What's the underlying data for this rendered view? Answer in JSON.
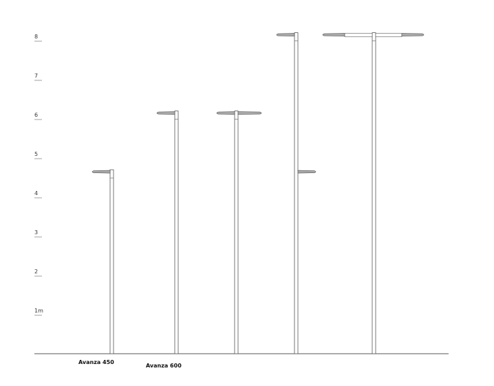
{
  "scale": {
    "unit_label": "m",
    "ticks": [
      "1",
      "2",
      "3",
      "4",
      "5",
      "6",
      "7",
      "8"
    ]
  },
  "products": [
    {
      "label": "Avanza 450",
      "height_m": 4.7,
      "arms": [
        "left"
      ]
    },
    {
      "label": "Avanza 600",
      "height_m": 6.2,
      "arms": [
        "left"
      ]
    },
    {
      "label": "",
      "height_m": 6.2,
      "arms": [
        "left",
        "right"
      ]
    },
    {
      "label": "",
      "height_m": 8.2,
      "arms": [
        "left"
      ],
      "secondary_height_m": 4.7
    },
    {
      "label": "",
      "height_m": 8.2,
      "arms": [
        "left-long",
        "right-long"
      ]
    }
  ],
  "colors": {
    "line": "#555555",
    "lamp": "#aaaaaa"
  }
}
